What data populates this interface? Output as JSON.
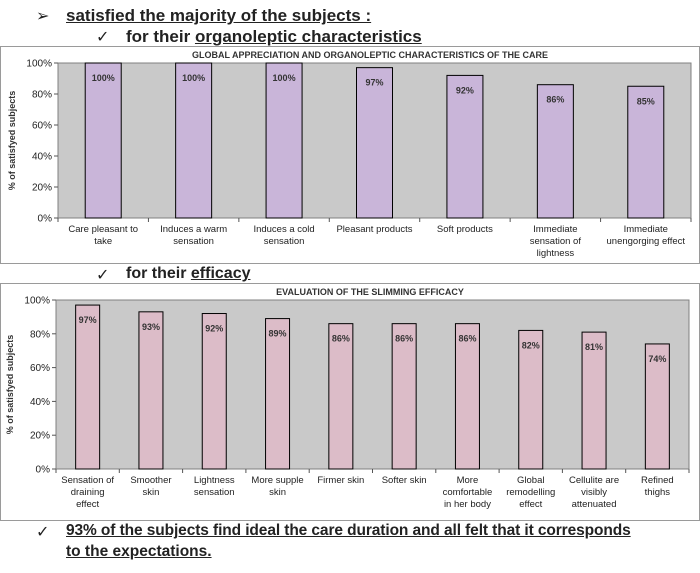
{
  "header": {
    "arrow_glyph": "➢",
    "check_glyph": "✓",
    "main_line": "satisfied the majority of the subjects :",
    "organo_prefix": "for their ",
    "organo_link": "organoleptic characteristics",
    "efficacy_prefix": "for their ",
    "efficacy_link": "efficacy"
  },
  "conclusion": {
    "line1": "93% of the subjects find ideal the care duration and all felt that it corresponds",
    "line2": "to the expectations."
  },
  "chart_data": [
    {
      "type": "bar",
      "title": "GLOBAL APPRECIATION AND ORGANOLEPTIC CHARACTERISTICS OF THE CARE",
      "ylabel": "%  of satisfyed subjects",
      "xlabel": "",
      "ylim": [
        0,
        100
      ],
      "yticks": [
        "0%",
        "20%",
        "40%",
        "60%",
        "80%",
        "100%"
      ],
      "categories": [
        [
          "Care pleasant to",
          "take"
        ],
        [
          "Induces a warm",
          "sensation"
        ],
        [
          "Induces a cold",
          "sensation"
        ],
        [
          "Pleasant products"
        ],
        [
          "Soft products"
        ],
        [
          "Immediate",
          "sensation of",
          "lightness"
        ],
        [
          "Immediate",
          "unengorging effect"
        ]
      ],
      "values": [
        100,
        100,
        100,
        97,
        92,
        86,
        85
      ],
      "labels": [
        "100%",
        "100%",
        "100%",
        "97%",
        "92%",
        "86%",
        "85%"
      ],
      "bar_color": "#c9b5d9",
      "plot_bg": "#c9c9c9",
      "grid": false
    },
    {
      "type": "bar",
      "title": "EVALUATION OF THE SLIMMING EFFICACY",
      "ylabel": "% of satisfyed subjects",
      "xlabel": "",
      "ylim": [
        0,
        100
      ],
      "yticks": [
        "0%",
        "20%",
        "40%",
        "60%",
        "80%",
        "100%"
      ],
      "categories": [
        [
          "Sensation of",
          "draining",
          "effect"
        ],
        [
          "Smoother",
          "skin"
        ],
        [
          "Lightness",
          "sensation"
        ],
        [
          "More supple",
          "skin"
        ],
        [
          "Firmer skin"
        ],
        [
          "Softer skin"
        ],
        [
          "More",
          "comfortable",
          "in her body"
        ],
        [
          "Global",
          "remodelling",
          "effect"
        ],
        [
          "Cellulite are",
          "visibly",
          "attenuated"
        ],
        [
          "Refined",
          "thighs"
        ]
      ],
      "values": [
        97,
        93,
        92,
        89,
        86,
        86,
        86,
        82,
        81,
        74
      ],
      "labels": [
        "97%",
        "93%",
        "92%",
        "89%",
        "86%",
        "86%",
        "86%",
        "82%",
        "81%",
        "74%"
      ],
      "bar_color": "#dcbcc8",
      "plot_bg": "#c9c9c9",
      "grid": false
    }
  ]
}
